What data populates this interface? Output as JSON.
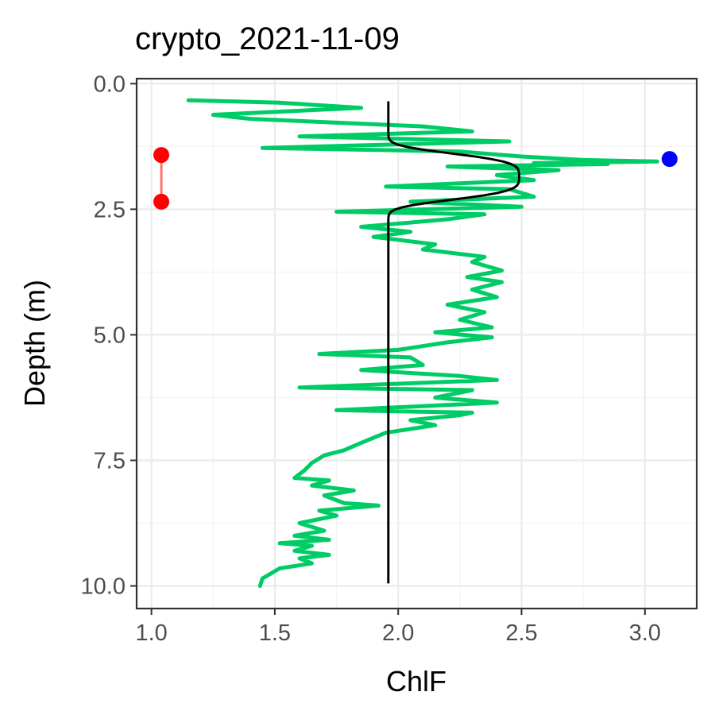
{
  "chart_data": {
    "type": "line",
    "title": "crypto_2021-11-09",
    "xlabel": "ChlF",
    "ylabel": "Depth (m)",
    "xlim": [
      0.94,
      3.21
    ],
    "ylim": [
      10.45,
      -0.1
    ],
    "y_reversed": true,
    "grid": true,
    "x_ticks": [
      1.0,
      1.5,
      2.0,
      2.5,
      3.0
    ],
    "x_tick_labels": [
      "1.0",
      "1.5",
      "2.0",
      "2.5",
      "3.0"
    ],
    "y_ticks": [
      0.0,
      2.5,
      5.0,
      7.5,
      10.0
    ],
    "y_tick_labels": [
      "0.0",
      "2.5",
      "5.0",
      "7.5",
      "10.0"
    ],
    "series": [
      {
        "kind": "line",
        "color": "#00cc66",
        "points": [
          [
            1.15,
            0.33
          ],
          [
            1.52,
            0.38
          ],
          [
            1.85,
            0.48
          ],
          [
            1.25,
            0.62
          ],
          [
            1.4,
            0.7
          ],
          [
            2.1,
            0.85
          ],
          [
            2.3,
            0.95
          ],
          [
            1.6,
            1.05
          ],
          [
            2.45,
            1.15
          ],
          [
            1.45,
            1.28
          ],
          [
            2.25,
            1.35
          ],
          [
            2.5,
            1.45
          ],
          [
            2.75,
            1.52
          ],
          [
            3.05,
            1.55
          ],
          [
            2.55,
            1.58
          ],
          [
            2.85,
            1.6
          ],
          [
            2.2,
            1.65
          ],
          [
            2.65,
            1.72
          ],
          [
            2.4,
            1.82
          ],
          [
            2.55,
            1.92
          ],
          [
            1.95,
            2.05
          ],
          [
            2.45,
            2.1
          ],
          [
            2.55,
            2.25
          ],
          [
            2.05,
            2.35
          ],
          [
            2.5,
            2.45
          ],
          [
            1.75,
            2.55
          ],
          [
            2.35,
            2.6
          ],
          [
            2.2,
            2.7
          ],
          [
            1.85,
            2.85
          ],
          [
            2.05,
            2.95
          ],
          [
            1.9,
            3.05
          ],
          [
            2.15,
            3.2
          ],
          [
            2.1,
            3.3
          ],
          [
            2.35,
            3.45
          ],
          [
            2.3,
            3.55
          ],
          [
            2.42,
            3.72
          ],
          [
            2.28,
            3.85
          ],
          [
            2.42,
            3.95
          ],
          [
            2.3,
            4.1
          ],
          [
            2.4,
            4.25
          ],
          [
            2.2,
            4.4
          ],
          [
            2.35,
            4.55
          ],
          [
            2.25,
            4.7
          ],
          [
            2.38,
            4.85
          ],
          [
            2.15,
            4.95
          ],
          [
            2.38,
            5.05
          ],
          [
            2.2,
            5.15
          ],
          [
            2.0,
            5.3
          ],
          [
            1.68,
            5.38
          ],
          [
            2.05,
            5.45
          ],
          [
            2.1,
            5.6
          ],
          [
            1.85,
            5.7
          ],
          [
            2.25,
            5.82
          ],
          [
            2.4,
            5.9
          ],
          [
            1.6,
            6.05
          ],
          [
            2.3,
            6.1
          ],
          [
            2.15,
            6.25
          ],
          [
            2.4,
            6.35
          ],
          [
            1.75,
            6.5
          ],
          [
            2.3,
            6.55
          ],
          [
            2.25,
            6.6
          ],
          [
            2.05,
            6.7
          ],
          [
            2.15,
            6.8
          ],
          [
            1.95,
            6.95
          ],
          [
            1.85,
            7.15
          ],
          [
            1.78,
            7.3
          ],
          [
            1.7,
            7.4
          ],
          [
            1.65,
            7.55
          ],
          [
            1.62,
            7.7
          ],
          [
            1.58,
            7.85
          ],
          [
            1.72,
            7.9
          ],
          [
            1.65,
            8.0
          ],
          [
            1.82,
            8.1
          ],
          [
            1.7,
            8.2
          ],
          [
            1.78,
            8.35
          ],
          [
            1.92,
            8.4
          ],
          [
            1.68,
            8.5
          ],
          [
            1.75,
            8.6
          ],
          [
            1.6,
            8.75
          ],
          [
            1.7,
            8.9
          ],
          [
            1.58,
            9.0
          ],
          [
            1.72,
            9.08
          ],
          [
            1.52,
            9.15
          ],
          [
            1.65,
            9.2
          ],
          [
            1.58,
            9.3
          ],
          [
            1.72,
            9.38
          ],
          [
            1.6,
            9.45
          ],
          [
            1.65,
            9.55
          ],
          [
            1.52,
            9.65
          ],
          [
            1.45,
            9.85
          ],
          [
            1.44,
            10.0
          ]
        ]
      },
      {
        "kind": "fitted_curve",
        "color": "#000000",
        "baseline": 1.96,
        "peak": 2.49,
        "peak_depth": 1.85,
        "depth_range": [
          0.35,
          9.95
        ]
      },
      {
        "kind": "point",
        "color": "#0000ff",
        "points": [
          [
            3.1,
            1.5
          ]
        ]
      },
      {
        "kind": "segment",
        "color": "#ff0000",
        "line_color": "#f8766d",
        "points": [
          [
            1.04,
            1.42
          ],
          [
            1.04,
            2.35
          ]
        ]
      }
    ]
  }
}
